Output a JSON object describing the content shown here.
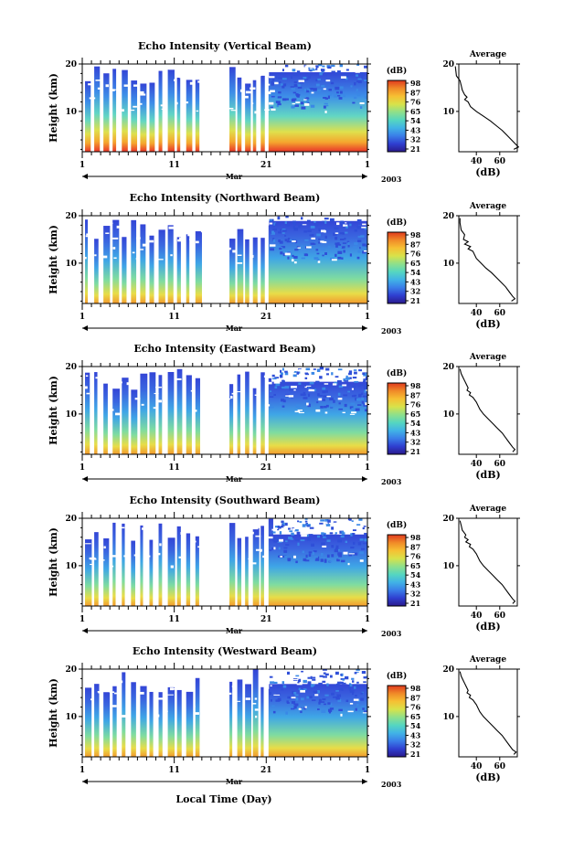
{
  "figure": {
    "xlabel": "Local Time (Day)",
    "year": "2003",
    "month_label": "Mar"
  },
  "colorscale": {
    "unit": "(dB)",
    "ticks": [
      "98",
      "87",
      "76",
      "65",
      "54",
      "43",
      "32",
      "21"
    ],
    "colors": [
      "#2a1a8c",
      "#2f3fd0",
      "#3a7ee8",
      "#41b3e6",
      "#55d6c0",
      "#8fe08a",
      "#d8e24a",
      "#f6c033",
      "#f08a28",
      "#e03a1e"
    ]
  },
  "chart_data": [
    {
      "type": "heatmap",
      "title": "Echo Intensity (Vertical Beam)",
      "ylabel": "Height (km)",
      "xlim": [
        1,
        32
      ],
      "xticks": [
        "1",
        "11",
        "21",
        "1"
      ],
      "ylim": [
        1.5,
        20
      ],
      "yticks": [
        "20",
        "10"
      ],
      "gap_days": [
        [
          14.2,
          17.0
        ]
      ],
      "profile": {
        "title": "Average",
        "xlabel": "(dB)",
        "xticks": [
          "40",
          "60"
        ],
        "points": [
          [
            22,
            19.5
          ],
          [
            22.5,
            18.5
          ],
          [
            23,
            17.5
          ],
          [
            26,
            16.5
          ],
          [
            27,
            15.5
          ],
          [
            28,
            14.5
          ],
          [
            30,
            13.5
          ],
          [
            32,
            13
          ],
          [
            30,
            12.5
          ],
          [
            33,
            12
          ],
          [
            35,
            11
          ],
          [
            40,
            10
          ],
          [
            46,
            9
          ],
          [
            52,
            8
          ],
          [
            57,
            7
          ],
          [
            62,
            6
          ],
          [
            66,
            5
          ],
          [
            70,
            4
          ],
          [
            74,
            3
          ],
          [
            76,
            2.5
          ],
          [
            72,
            2
          ]
        ]
      }
    },
    {
      "type": "heatmap",
      "title": "Echo Intensity (Northward Beam)",
      "ylabel": "Height (km)",
      "xlim": [
        1,
        32
      ],
      "xticks": [
        "1",
        "11",
        "21",
        "1"
      ],
      "ylim": [
        1.5,
        20
      ],
      "yticks": [
        "20",
        "10"
      ],
      "gap_days": [
        [
          14.2,
          17.0
        ]
      ],
      "profile": {
        "title": "Average",
        "xlabel": "(dB)",
        "xticks": [
          "40",
          "60"
        ],
        "points": [
          [
            26,
            19.5
          ],
          [
            26,
            18.5
          ],
          [
            27,
            17
          ],
          [
            30,
            16
          ],
          [
            29,
            15
          ],
          [
            33,
            14.5
          ],
          [
            30,
            14
          ],
          [
            35,
            13.5
          ],
          [
            33,
            13
          ],
          [
            37,
            12.5
          ],
          [
            40,
            11
          ],
          [
            44,
            10
          ],
          [
            48,
            9
          ],
          [
            53,
            8
          ],
          [
            57,
            7
          ],
          [
            61,
            6
          ],
          [
            65,
            5
          ],
          [
            68,
            4
          ],
          [
            71,
            3
          ],
          [
            73,
            2.5
          ],
          [
            70,
            2
          ]
        ]
      }
    },
    {
      "type": "heatmap",
      "title": "Echo Intensity (Eastward Beam)",
      "ylabel": "Height (km)",
      "xlim": [
        1,
        32
      ],
      "xticks": [
        "1",
        "11",
        "21",
        "1"
      ],
      "ylim": [
        1.5,
        20
      ],
      "yticks": [
        "20",
        "10"
      ],
      "gap_days": [
        [
          14.2,
          17.0
        ]
      ],
      "profile": {
        "title": "Average",
        "xlabel": "(dB)",
        "xticks": [
          "40",
          "60"
        ],
        "points": [
          [
            26,
            19.5
          ],
          [
            27,
            18.5
          ],
          [
            29,
            17.5
          ],
          [
            31,
            16.5
          ],
          [
            33,
            15.5
          ],
          [
            32,
            15
          ],
          [
            35,
            14.5
          ],
          [
            34,
            14
          ],
          [
            37,
            13.5
          ],
          [
            40,
            12.5
          ],
          [
            43,
            11
          ],
          [
            46,
            10
          ],
          [
            50,
            9
          ],
          [
            54,
            8
          ],
          [
            58,
            7
          ],
          [
            62,
            6
          ],
          [
            65,
            5
          ],
          [
            68,
            4
          ],
          [
            71,
            3
          ],
          [
            73,
            2.5
          ],
          [
            71,
            2
          ]
        ]
      }
    },
    {
      "type": "heatmap",
      "title": "Echo Intensity (Southward Beam)",
      "ylabel": "Height (km)",
      "xlim": [
        1,
        32
      ],
      "xticks": [
        "1",
        "11",
        "21",
        "1"
      ],
      "ylim": [
        1.5,
        20
      ],
      "yticks": [
        "20",
        "10"
      ],
      "gap_days": [
        [
          14.2,
          17.0
        ]
      ],
      "profile": {
        "title": "Average",
        "xlabel": "(dB)",
        "xticks": [
          "40",
          "60"
        ],
        "points": [
          [
            26,
            19.5
          ],
          [
            27,
            18.5
          ],
          [
            28,
            17.5
          ],
          [
            31,
            16.5
          ],
          [
            30,
            16
          ],
          [
            33,
            15.5
          ],
          [
            31,
            15
          ],
          [
            35,
            14.5
          ],
          [
            34,
            14
          ],
          [
            37,
            13.5
          ],
          [
            40,
            12.5
          ],
          [
            43,
            11
          ],
          [
            46,
            10
          ],
          [
            50,
            9
          ],
          [
            54,
            8
          ],
          [
            58,
            7
          ],
          [
            62,
            6
          ],
          [
            65,
            5
          ],
          [
            68,
            4
          ],
          [
            71,
            3
          ],
          [
            73,
            2.5
          ],
          [
            71,
            2
          ]
        ]
      }
    },
    {
      "type": "heatmap",
      "title": "Echo Intensity (Westward Beam)",
      "ylabel": "Height (km)",
      "xlim": [
        1,
        32
      ],
      "xticks": [
        "1",
        "11",
        "21",
        "1"
      ],
      "ylim": [
        1.5,
        20
      ],
      "yticks": [
        "20",
        "10"
      ],
      "gap_days": [
        [
          14.2,
          17.0
        ]
      ],
      "profile": {
        "title": "Average",
        "xlabel": "(dB)",
        "xticks": [
          "40",
          "60"
        ],
        "points": [
          [
            26,
            19.5
          ],
          [
            27,
            18.5
          ],
          [
            29,
            17.5
          ],
          [
            31,
            16.5
          ],
          [
            33,
            15.5
          ],
          [
            32,
            15
          ],
          [
            35,
            14.5
          ],
          [
            34,
            14
          ],
          [
            37,
            13.5
          ],
          [
            40,
            12.5
          ],
          [
            43,
            11
          ],
          [
            46,
            10
          ],
          [
            50,
            9
          ],
          [
            54,
            8
          ],
          [
            58,
            7
          ],
          [
            62,
            6
          ],
          [
            65,
            5
          ],
          [
            68,
            4
          ],
          [
            71,
            3
          ],
          [
            74,
            2.5
          ],
          [
            72,
            2
          ]
        ]
      }
    }
  ]
}
